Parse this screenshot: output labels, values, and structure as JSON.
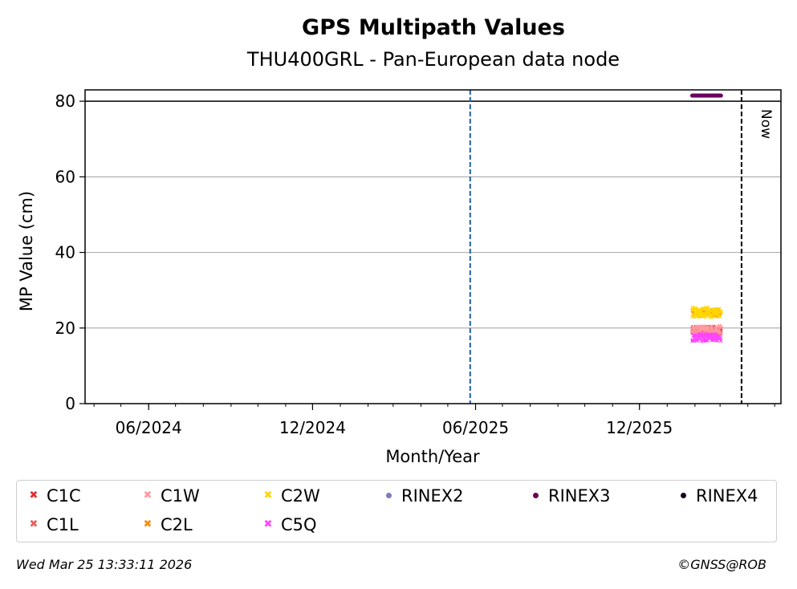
{
  "chart_data": {
    "type": "scatter",
    "title": "GPS Multipath Values",
    "subtitle": "THU400GRL - Pan-European data node",
    "xlabel": "Month/Year",
    "ylabel": "MP Value (cm)",
    "xlim": [
      "2024-03-22",
      "2026-05-08"
    ],
    "ylim": [
      0,
      83
    ],
    "y_ticks": [
      0,
      20,
      40,
      60,
      80
    ],
    "x_ticks": [
      {
        "date": "2024-06-01",
        "label": "06/2024"
      },
      {
        "date": "2024-12-01",
        "label": "12/2024"
      },
      {
        "date": "2025-06-01",
        "label": "06/2025"
      },
      {
        "date": "2025-12-01",
        "label": "12/2025"
      }
    ],
    "grid": "horizontal",
    "reference_lines": [
      {
        "type": "hline",
        "y": 80,
        "color": "#000000",
        "style": "solid"
      },
      {
        "type": "vline",
        "date": "2025-05-26",
        "color": "#1f5faa",
        "style": "dashed"
      },
      {
        "type": "vline",
        "date": "2026-03-25",
        "color": "#000000",
        "style": "dashed",
        "label": "Now"
      }
    ],
    "series": [
      {
        "name": "C1C",
        "marker": "x",
        "color": "#e03030",
        "x_range": [
          "2026-01-29",
          "2026-03-02"
        ],
        "mean": 19.5,
        "spread": 0.9,
        "count": 60
      },
      {
        "name": "C1L",
        "marker": "x",
        "color": "#ee5c5c",
        "x_range": [
          "2026-01-29",
          "2026-03-02"
        ],
        "mean": 19.2,
        "spread": 0.9,
        "count": 60
      },
      {
        "name": "C1W",
        "marker": "x",
        "color": "#ff9aa0",
        "x_range": [
          "2026-01-29",
          "2026-03-02"
        ],
        "mean": 19.6,
        "spread": 1.0,
        "count": 60
      },
      {
        "name": "C2L",
        "marker": "x",
        "color": "#ff8c00",
        "x_range": [
          "2026-01-29",
          "2026-03-02"
        ],
        "mean": 24.0,
        "spread": 1.0,
        "count": 40
      },
      {
        "name": "C2W",
        "marker": "x",
        "color": "#ffd700",
        "x_range": [
          "2026-01-29",
          "2026-03-02"
        ],
        "mean": 24.2,
        "spread": 1.3,
        "count": 70
      },
      {
        "name": "C5Q",
        "marker": "x",
        "color": "#ff44ff",
        "x_range": [
          "2026-01-29",
          "2026-03-02"
        ],
        "mean": 17.5,
        "spread": 1.0,
        "count": 70
      },
      {
        "name": "RINEX2",
        "marker": "dot",
        "color": "#7b7bbf",
        "points": []
      },
      {
        "name": "RINEX3",
        "marker": "dot",
        "color": "#6a005f",
        "x_range": [
          "2026-01-29",
          "2026-03-02"
        ],
        "mean": 81.5,
        "spread": 0,
        "count": 30
      },
      {
        "name": "RINEX4",
        "marker": "dot",
        "color": "#1a0020",
        "points": []
      }
    ],
    "legend": [
      {
        "name": "C1C",
        "marker": "x",
        "color": "#e03030"
      },
      {
        "name": "C1W",
        "marker": "x",
        "color": "#ff9aa0"
      },
      {
        "name": "C2W",
        "marker": "x",
        "color": "#ffd700"
      },
      {
        "name": "RINEX2",
        "marker": "dot",
        "color": "#7b7bbf"
      },
      {
        "name": "RINEX3",
        "marker": "dot",
        "color": "#6a005f"
      },
      {
        "name": "RINEX4",
        "marker": "dot",
        "color": "#1a0020"
      },
      {
        "name": "C1L",
        "marker": "x",
        "color": "#ee5c5c"
      },
      {
        "name": "C2L",
        "marker": "x",
        "color": "#ff8c00"
      },
      {
        "name": "C5Q",
        "marker": "x",
        "color": "#ff44ff"
      }
    ],
    "legend_placement": "bottom"
  },
  "footer": {
    "timestamp": "Wed Mar 25 13:33:11 2026",
    "copyright": "©GNSS@ROB"
  }
}
